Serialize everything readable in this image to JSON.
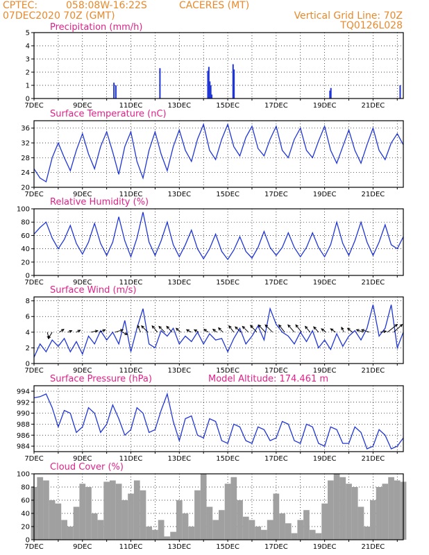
{
  "header": {
    "source": "CPTEC:",
    "coords": "058:08W-16:22S",
    "location": "CACERES (MT)",
    "run": "07DEC2020 70Z (GMT)",
    "vgrid": "Vertical Grid Line: 70Z",
    "code": "TQ0126L028"
  },
  "colors": {
    "line": "#1f35d6",
    "title": "#e0218a",
    "header": "#e8892b",
    "cloud_fill": "#a0a0a0",
    "frame": "#000000",
    "vector": "#000000"
  },
  "chart_data": [
    {
      "type": "bar",
      "title": "Precipitation (mm/h)",
      "ylim": [
        0,
        5
      ],
      "yticks": [
        "0",
        "1",
        "2",
        "3",
        "4",
        "5"
      ],
      "x_tick_labels": [
        "7DEC",
        "9DEC",
        "11DEC",
        "13DEC",
        "15DEC",
        "17DEC",
        "19DEC",
        "21DEC"
      ],
      "x_tick_days": [
        7,
        9,
        11,
        13,
        15,
        17,
        19,
        21
      ],
      "xlim_days": [
        7,
        22.25
      ],
      "x": [
        10.3,
        10.38,
        12.2,
        14.18,
        14.22,
        14.26,
        14.3,
        14.34,
        15.22,
        15.26,
        19.22,
        19.26,
        22.12
      ],
      "values": [
        1.2,
        1.0,
        2.3,
        2.1,
        2.4,
        1.3,
        1.0,
        0.3,
        2.6,
        2.2,
        0.6,
        0.8,
        1.0
      ]
    },
    {
      "type": "line",
      "title": "Surface Temperature (nC)",
      "ylim": [
        20,
        38
      ],
      "yticks": [
        "20",
        "24",
        "28",
        "32",
        "36"
      ],
      "x_tick_labels": [
        "7DEC",
        "9DEC",
        "11DEC",
        "13DEC",
        "15DEC",
        "17DEC",
        "19DEC",
        "21DEC"
      ],
      "x_tick_days": [
        7,
        9,
        11,
        13,
        15,
        17,
        19,
        21
      ],
      "xlim_days": [
        7,
        22.25
      ],
      "x": [
        7.0,
        7.25,
        7.5,
        7.75,
        8.0,
        8.25,
        8.5,
        8.75,
        9.0,
        9.25,
        9.5,
        9.75,
        10.0,
        10.25,
        10.5,
        10.75,
        11.0,
        11.25,
        11.5,
        11.75,
        12.0,
        12.25,
        12.5,
        12.75,
        13.0,
        13.25,
        13.5,
        13.75,
        14.0,
        14.25,
        14.5,
        14.75,
        15.0,
        15.25,
        15.5,
        15.75,
        16.0,
        16.25,
        16.5,
        16.75,
        17.0,
        17.25,
        17.5,
        17.75,
        18.0,
        18.25,
        18.5,
        18.75,
        19.0,
        19.25,
        19.5,
        19.75,
        20.0,
        20.25,
        20.5,
        20.75,
        21.0,
        21.25,
        21.5,
        21.75,
        22.0,
        22.25
      ],
      "series": [
        {
          "values": [
            25.0,
            22.5,
            21.5,
            28.0,
            32.0,
            28.0,
            24.5,
            30.0,
            34.5,
            29.0,
            25.0,
            31.0,
            35.0,
            29.5,
            23.5,
            31.0,
            35.0,
            27.0,
            22.5,
            30.0,
            35.0,
            29.0,
            24.5,
            31.0,
            35.5,
            30.0,
            27.0,
            33.0,
            37.0,
            30.0,
            27.5,
            33.0,
            37.0,
            31.0,
            28.5,
            33.5,
            36.5,
            30.5,
            28.5,
            33.0,
            36.5,
            30.0,
            28.0,
            33.0,
            36.0,
            30.0,
            28.0,
            32.5,
            36.5,
            30.0,
            26.5,
            31.0,
            35.5,
            30.0,
            26.5,
            31.5,
            36.0,
            30.0,
            27.5,
            32.0,
            34.5,
            31.5
          ]
        }
      ]
    },
    {
      "type": "line",
      "title": "Relative Humidity (%)",
      "ylim": [
        0,
        100
      ],
      "yticks": [
        "0",
        "20",
        "40",
        "60",
        "80",
        "100"
      ],
      "x_tick_labels": [
        "7DEC",
        "9DEC",
        "11DEC",
        "13DEC",
        "15DEC",
        "17DEC",
        "19DEC",
        "21DEC"
      ],
      "x_tick_days": [
        7,
        9,
        11,
        13,
        15,
        17,
        19,
        21
      ],
      "xlim_days": [
        7,
        22.25
      ],
      "x": [
        7.0,
        7.25,
        7.5,
        7.75,
        8.0,
        8.25,
        8.5,
        8.75,
        9.0,
        9.25,
        9.5,
        9.75,
        10.0,
        10.25,
        10.5,
        10.75,
        11.0,
        11.25,
        11.5,
        11.75,
        12.0,
        12.25,
        12.5,
        12.75,
        13.0,
        13.25,
        13.5,
        13.75,
        14.0,
        14.25,
        14.5,
        14.75,
        15.0,
        15.25,
        15.5,
        15.75,
        16.0,
        16.25,
        16.5,
        16.75,
        17.0,
        17.25,
        17.5,
        17.75,
        18.0,
        18.25,
        18.5,
        18.75,
        19.0,
        19.25,
        19.5,
        19.75,
        20.0,
        20.25,
        20.5,
        20.75,
        21.0,
        21.25,
        21.5,
        21.75,
        22.0,
        22.25
      ],
      "series": [
        {
          "values": [
            62.0,
            72.0,
            80.0,
            56.0,
            40.0,
            54.0,
            75.0,
            48.0,
            32.0,
            50.0,
            78.0,
            48.0,
            30.0,
            50.0,
            88.0,
            52.0,
            28.0,
            56.0,
            95.0,
            50.0,
            30.0,
            52.0,
            80.0,
            46.0,
            28.0,
            46.0,
            68.0,
            40.0,
            25.0,
            40.0,
            62.0,
            36.0,
            24.0,
            38.0,
            58.0,
            36.0,
            26.0,
            42.0,
            66.0,
            42.0,
            30.0,
            42.0,
            64.0,
            42.0,
            28.0,
            42.0,
            64.0,
            42.0,
            28.0,
            46.0,
            80.0,
            48.0,
            30.0,
            52.0,
            80.0,
            50.0,
            30.0,
            50.0,
            76.0,
            46.0,
            40.0,
            58.0
          ]
        }
      ]
    },
    {
      "type": "line",
      "title": "Surface Wind (m/s)",
      "ylim": [
        0,
        8.5
      ],
      "yticks": [
        "0",
        "2",
        "4",
        "6",
        "8"
      ],
      "x_tick_labels": [
        "7DEC",
        "9DEC",
        "11DEC",
        "13DEC",
        "15DEC",
        "17DEC",
        "19DEC",
        "21DEC"
      ],
      "x_tick_days": [
        7,
        9,
        11,
        13,
        15,
        17,
        19,
        21
      ],
      "xlim_days": [
        7,
        22.25
      ],
      "x": [
        7.0,
        7.25,
        7.5,
        7.75,
        8.0,
        8.25,
        8.5,
        8.75,
        9.0,
        9.25,
        9.5,
        9.75,
        10.0,
        10.25,
        10.5,
        10.75,
        11.0,
        11.25,
        11.5,
        11.75,
        12.0,
        12.25,
        12.5,
        12.75,
        13.0,
        13.25,
        13.5,
        13.75,
        14.0,
        14.25,
        14.5,
        14.75,
        15.0,
        15.25,
        15.5,
        15.75,
        16.0,
        16.25,
        16.5,
        16.75,
        17.0,
        17.25,
        17.5,
        17.75,
        18.0,
        18.25,
        18.5,
        18.75,
        19.0,
        19.25,
        19.5,
        19.75,
        20.0,
        20.25,
        20.5,
        20.75,
        21.0,
        21.25,
        21.5,
        21.75,
        22.0,
        22.25
      ],
      "series": [
        {
          "values": [
            0.8,
            2.5,
            1.5,
            3.0,
            2.2,
            3.2,
            1.5,
            2.8,
            1.2,
            3.5,
            2.5,
            4.2,
            3.0,
            4.0,
            2.5,
            5.5,
            1.5,
            4.5,
            7.0,
            2.5,
            2.0,
            4.2,
            3.5,
            4.5,
            2.5,
            3.5,
            2.8,
            4.0,
            2.5,
            3.8,
            3.0,
            3.2,
            1.5,
            3.2,
            4.5,
            2.5,
            3.5,
            4.8,
            3.0,
            7.0,
            5.0,
            4.0,
            3.5,
            2.5,
            4.0,
            2.8,
            4.2,
            2.0,
            3.0,
            1.8,
            3.8,
            2.2,
            3.5,
            4.2,
            3.0,
            4.5,
            7.5,
            3.5,
            4.5,
            7.5,
            2.0,
            4.0
          ]
        }
      ],
      "vectors": {
        "x": [
          7.55,
          7.75,
          8.05,
          8.4,
          8.75,
          9.35,
          9.7,
          10.35,
          10.65,
          11.4,
          11.7,
          12.1,
          12.4,
          12.7,
          13.05,
          13.5,
          13.8,
          14.2,
          14.55,
          14.8,
          15.25,
          15.55,
          15.85,
          16.2,
          16.55,
          16.85,
          17.35,
          17.75,
          18.05,
          18.4,
          18.75,
          19.05,
          19.45,
          19.8,
          20.15,
          20.6,
          20.85,
          21.3,
          21.6,
          21.85
        ],
        "u": [
          0.3,
          -0.8,
          0.9,
          0.8,
          0.8,
          1.4,
          1.2,
          1.6,
          1.0,
          -0.6,
          -1.3,
          -1.1,
          -1.2,
          -1.1,
          -0.9,
          -1.0,
          -0.9,
          -0.9,
          -0.8,
          -0.9,
          -1.0,
          -1.2,
          -1.2,
          -1.3,
          -1.4,
          -1.5,
          -1.2,
          -1.3,
          -1.2,
          -1.0,
          -1.0,
          -0.9,
          -1.0,
          -0.5,
          -1.0,
          -1.4,
          -1.6,
          1.2,
          2.0,
          1.8
        ],
        "v": [
          -1.3,
          -1.3,
          0.6,
          0.3,
          0.4,
          0.3,
          0.5,
          0.5,
          -0.5,
          1.4,
          1.3,
          1.3,
          1.2,
          1.2,
          0.8,
          0.5,
          0.5,
          0.6,
          0.6,
          0.9,
          1.3,
          1.1,
          1.2,
          1.4,
          1.5,
          1.5,
          1.5,
          1.5,
          1.5,
          1.2,
          1.1,
          0.7,
          0.7,
          1.0,
          0.8,
          0.5,
          0.5,
          0.2,
          1.6,
          1.6
        ]
      }
    },
    {
      "type": "line",
      "title": "Surface Pressure (hPa)",
      "annotation": "Model Altitude: 174.461 m",
      "ylim": [
        983,
        995
      ],
      "yticks": [
        "984",
        "986",
        "988",
        "990",
        "992",
        "994"
      ],
      "x_tick_labels": [
        "7DEC",
        "9DEC",
        "11DEC",
        "13DEC",
        "15DEC",
        "17DEC",
        "19DEC",
        "21DEC"
      ],
      "x_tick_days": [
        7,
        9,
        11,
        13,
        15,
        17,
        19,
        21
      ],
      "xlim_days": [
        7,
        22.25
      ],
      "x": [
        7.0,
        7.25,
        7.5,
        7.75,
        8.0,
        8.25,
        8.5,
        8.75,
        9.0,
        9.25,
        9.5,
        9.75,
        10.0,
        10.25,
        10.5,
        10.75,
        11.0,
        11.25,
        11.5,
        11.75,
        12.0,
        12.25,
        12.5,
        12.75,
        13.0,
        13.25,
        13.5,
        13.75,
        14.0,
        14.25,
        14.5,
        14.75,
        15.0,
        15.25,
        15.5,
        15.75,
        16.0,
        16.25,
        16.5,
        16.75,
        17.0,
        17.25,
        17.5,
        17.75,
        18.0,
        18.25,
        18.5,
        18.75,
        19.0,
        19.25,
        19.5,
        19.75,
        20.0,
        20.25,
        20.5,
        20.75,
        21.0,
        21.25,
        21.5,
        21.75,
        22.0,
        22.25
      ],
      "series": [
        {
          "values": [
            992.8,
            993.0,
            993.5,
            991.0,
            987.5,
            990.5,
            990.0,
            986.5,
            987.5,
            991.0,
            990.0,
            986.5,
            988.0,
            991.5,
            989.0,
            986.0,
            987.0,
            991.0,
            990.0,
            986.5,
            987.0,
            990.5,
            993.5,
            988.5,
            985.0,
            989.0,
            989.5,
            986.0,
            985.5,
            989.0,
            988.5,
            985.0,
            984.5,
            988.0,
            987.5,
            985.0,
            984.5,
            987.5,
            987.0,
            985.0,
            985.5,
            988.5,
            988.0,
            985.0,
            984.5,
            988.0,
            987.5,
            984.5,
            984.0,
            987.5,
            987.0,
            984.5,
            984.5,
            987.5,
            986.5,
            983.5,
            984.0,
            987.0,
            986.0,
            983.5,
            984.0,
            985.5
          ]
        }
      ]
    },
    {
      "type": "area",
      "title": "Cloud Cover (%)",
      "ylim": [
        0,
        100
      ],
      "yticks": [
        "0",
        "20",
        "40",
        "60",
        "80",
        "100"
      ],
      "x_tick_labels": [
        "7DEC",
        "9DEC",
        "11DEC",
        "13DEC",
        "15DEC",
        "17DEC",
        "19DEC",
        "21DEC"
      ],
      "x_tick_days": [
        7,
        9,
        11,
        13,
        15,
        17,
        19,
        21
      ],
      "xlim_days": [
        7,
        22.25
      ],
      "x": [
        7.0,
        7.25,
        7.5,
        7.75,
        8.0,
        8.25,
        8.5,
        8.75,
        9.0,
        9.25,
        9.5,
        9.75,
        10.0,
        10.25,
        10.5,
        10.75,
        11.0,
        11.25,
        11.5,
        11.75,
        12.0,
        12.25,
        12.5,
        12.75,
        13.0,
        13.25,
        13.5,
        13.75,
        14.0,
        14.25,
        14.5,
        14.75,
        15.0,
        15.25,
        15.5,
        15.75,
        16.0,
        16.25,
        16.5,
        16.75,
        17.0,
        17.25,
        17.5,
        17.75,
        18.0,
        18.25,
        18.5,
        18.75,
        19.0,
        19.25,
        19.5,
        19.75,
        20.0,
        20.25,
        20.5,
        20.75,
        21.0,
        21.25,
        21.5,
        21.75,
        22.0,
        22.25
      ],
      "series": [
        {
          "values": [
            80,
            95,
            90,
            60,
            55,
            30,
            20,
            50,
            85,
            80,
            40,
            30,
            88,
            90,
            85,
            60,
            70,
            90,
            75,
            20,
            15,
            30,
            5,
            12,
            60,
            40,
            20,
            75,
            100,
            50,
            30,
            45,
            85,
            95,
            60,
            35,
            30,
            20,
            15,
            30,
            70,
            40,
            25,
            10,
            30,
            45,
            15,
            10,
            55,
            90,
            100,
            95,
            85,
            80,
            50,
            20,
            60,
            80,
            85,
            95,
            90,
            88
          ]
        }
      ]
    }
  ]
}
